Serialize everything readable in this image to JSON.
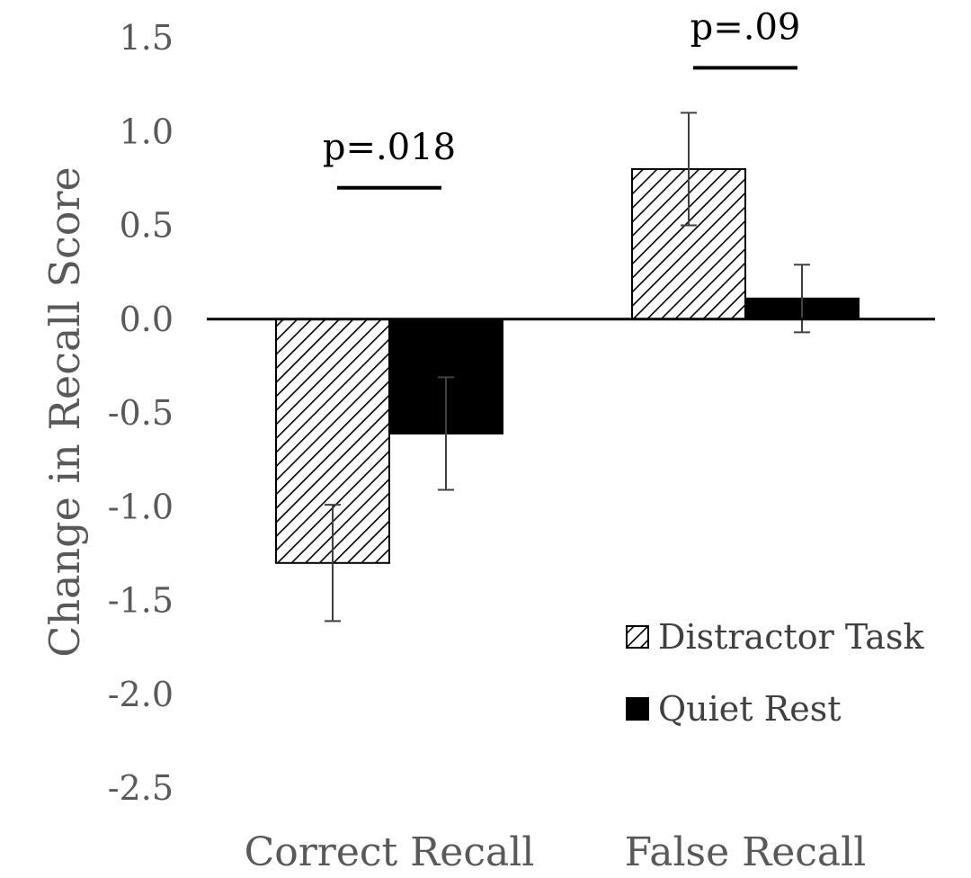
{
  "chart_data": {
    "type": "bar",
    "title": "",
    "ylabel": "Change in Recall Score",
    "xlabel": "",
    "ylim": [
      -2.5,
      1.5
    ],
    "yticks": [
      1.5,
      1.0,
      0.5,
      0.0,
      -0.5,
      -1.0,
      -1.5,
      -2.0,
      -2.5
    ],
    "ytick_labels": [
      "1.5",
      "1.0",
      "0.5",
      "0.0",
      "-0.5",
      "-1.0",
      "-1.5",
      "-2.0",
      "-2.5"
    ],
    "categories": [
      "Correct Recall",
      "False Recall"
    ],
    "series": [
      {
        "name": "Distractor Task",
        "pattern": "diagonal-hatch",
        "color": "#000000",
        "values": [
          -1.3,
          0.8
        ],
        "error": [
          0.31,
          0.3
        ]
      },
      {
        "name": "Quiet Rest",
        "pattern": "solid",
        "color": "#000000",
        "values": [
          -0.61,
          0.11
        ],
        "error": [
          0.3,
          0.18
        ]
      }
    ],
    "annotations": [
      {
        "text": "p=.018",
        "category": "Correct Recall",
        "y": 0.7
      },
      {
        "text": "p=.09",
        "category": "False Recall",
        "y": 1.34
      }
    ],
    "legend": {
      "position": "bottom-right"
    },
    "grid": false
  }
}
